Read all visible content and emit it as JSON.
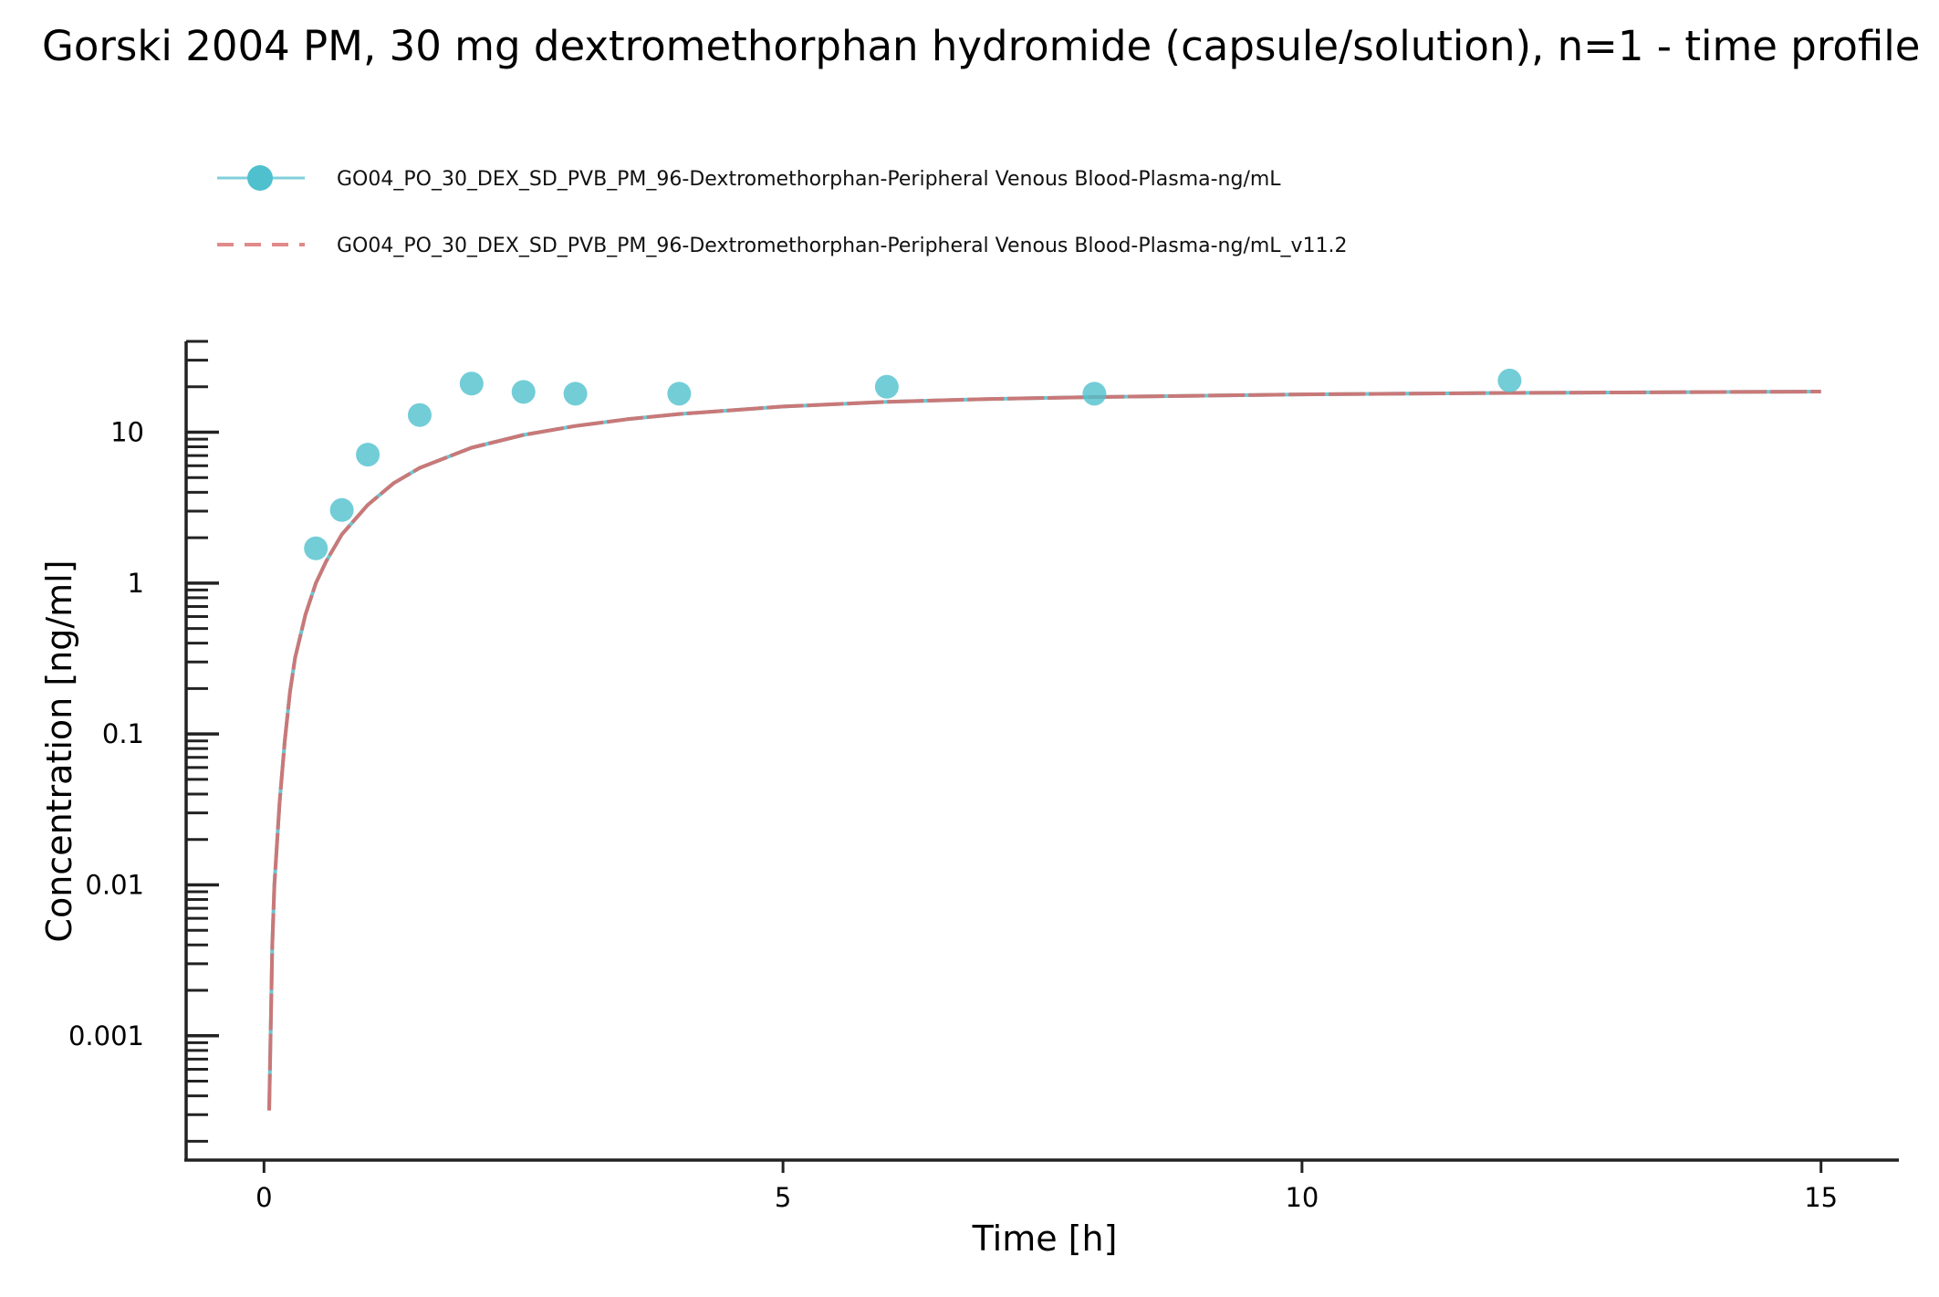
{
  "chart_data": {
    "type": "scatter",
    "title": "Gorski 2004 PM, 30 mg dextromethorphan hydromide (capsule/solution), n=1 - time profile",
    "xlabel": "Time [h]",
    "ylabel": "Concentration [ng/ml]",
    "xlim": [
      -0.75,
      15.75
    ],
    "ylim": [
      0.00015,
      40
    ],
    "yscale": "log",
    "grid": false,
    "legend_position": "top-left",
    "x_ticks": [
      {
        "value": 0,
        "label": "0"
      },
      {
        "value": 5,
        "label": "5"
      },
      {
        "value": 10,
        "label": "10"
      },
      {
        "value": 15,
        "label": "15"
      }
    ],
    "y_ticks": [
      {
        "value": 0.001,
        "label": "0.001"
      },
      {
        "value": 0.01,
        "label": "0.01"
      },
      {
        "value": 0.1,
        "label": "0.1"
      },
      {
        "value": 1,
        "label": "1"
      },
      {
        "value": 10,
        "label": "10"
      }
    ],
    "series": [
      {
        "name": "GO04_PO_30_DEX_SD_PVB_PM_96-Dextromethorphan-Peripheral Venous Blood-Plasma-ng/mL",
        "kind": "observed",
        "color": "#4fc0cd",
        "x": [
          0.5,
          0.75,
          1.0,
          1.5,
          2.0,
          2.5,
          3.0,
          4.0,
          6.0,
          8.0,
          12.0
        ],
        "y": [
          1.7,
          3.05,
          7.1,
          13.0,
          21.0,
          18.5,
          18.0,
          18.0,
          20.0,
          18.0,
          22.0
        ]
      },
      {
        "name": "GO04_PO_30_DEX_SD_PVB_PM_96-Dextromethorphan-Peripheral Venous Blood-Plasma-ng/mL_v11.2",
        "kind": "simulated",
        "color": "#e07b7b",
        "x": [
          0.05,
          0.08,
          0.1,
          0.15,
          0.2,
          0.25,
          0.3,
          0.4,
          0.5,
          0.6,
          0.75,
          1.0,
          1.25,
          1.5,
          2.0,
          2.5,
          3.0,
          3.5,
          4.0,
          5.0,
          6.0,
          7.0,
          8.0,
          10.0,
          12.0,
          15.0
        ],
        "y": [
          0.00032,
          0.004,
          0.01,
          0.035,
          0.09,
          0.19,
          0.32,
          0.62,
          1.0,
          1.4,
          2.1,
          3.3,
          4.6,
          5.8,
          7.9,
          9.6,
          11.0,
          12.2,
          13.2,
          14.8,
          15.9,
          16.6,
          17.1,
          17.8,
          18.2,
          18.6
        ]
      }
    ]
  }
}
